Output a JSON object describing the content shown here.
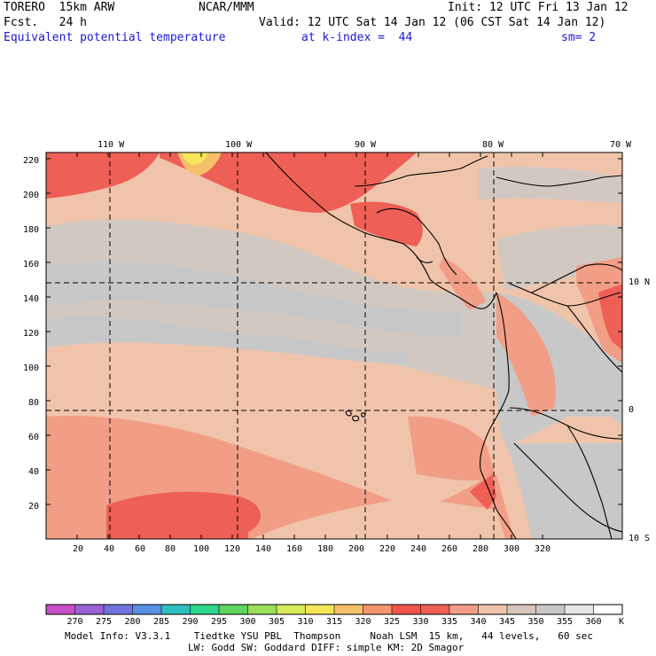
{
  "header": {
    "model": "TORERO  15km ARW",
    "org": "NCAR/MMM",
    "init": "Init: 12 UTC Fri 13 Jan 12",
    "fcst": "Fcst.   24 h",
    "valid": "Valid: 12 UTC Sat 14 Jan 12 (06 CST Sat 14 Jan 12)",
    "field": "Equivalent potential temperature",
    "level": "at k-index =  44",
    "smooth": "sm= 2"
  },
  "map": {
    "top_lon_labels": [
      "110 W",
      "100 W",
      "90 W",
      "80 W",
      "70 W"
    ],
    "right_lat_labels": [
      "10 N",
      "0",
      "10 S"
    ],
    "left_grid_labels": [
      "220",
      "200",
      "180",
      "160",
      "140",
      "120",
      "100",
      "80",
      "60",
      "40",
      "20"
    ],
    "bottom_grid_labels": [
      "20",
      "40",
      "60",
      "80",
      "100",
      "120",
      "140",
      "160",
      "180",
      "200",
      "220",
      "240",
      "260",
      "280",
      "300",
      "320"
    ]
  },
  "colorbar": {
    "labels": [
      "270",
      "275",
      "280",
      "285",
      "290",
      "295",
      "300",
      "305",
      "310",
      "315",
      "320",
      "325",
      "330",
      "335",
      "340",
      "345",
      "350",
      "355",
      "360"
    ],
    "unit": "K",
    "colors": [
      "#c74fc7",
      "#9b61d6",
      "#7373e0",
      "#5a8fe3",
      "#2fbfbf",
      "#2ed68c",
      "#5fd65f",
      "#9be05a",
      "#d7eb5a",
      "#f5e65a",
      "#f5c06a",
      "#f5966e",
      "#f0564b",
      "#ee5f55",
      "#f29e86",
      "#f0c4aa",
      "#d8c5bc",
      "#c8c8c8",
      "#e6e6e6",
      "#ffffff"
    ]
  },
  "footer": {
    "line1": "Model Info: V3.3.1    Tiedtke YSU PBL  Thompson     Noah LSM  15 km,   44 levels,   60 sec",
    "line2": "LW: Godd SW: Goddard DIFF: simple KM: 2D Smagor"
  }
}
